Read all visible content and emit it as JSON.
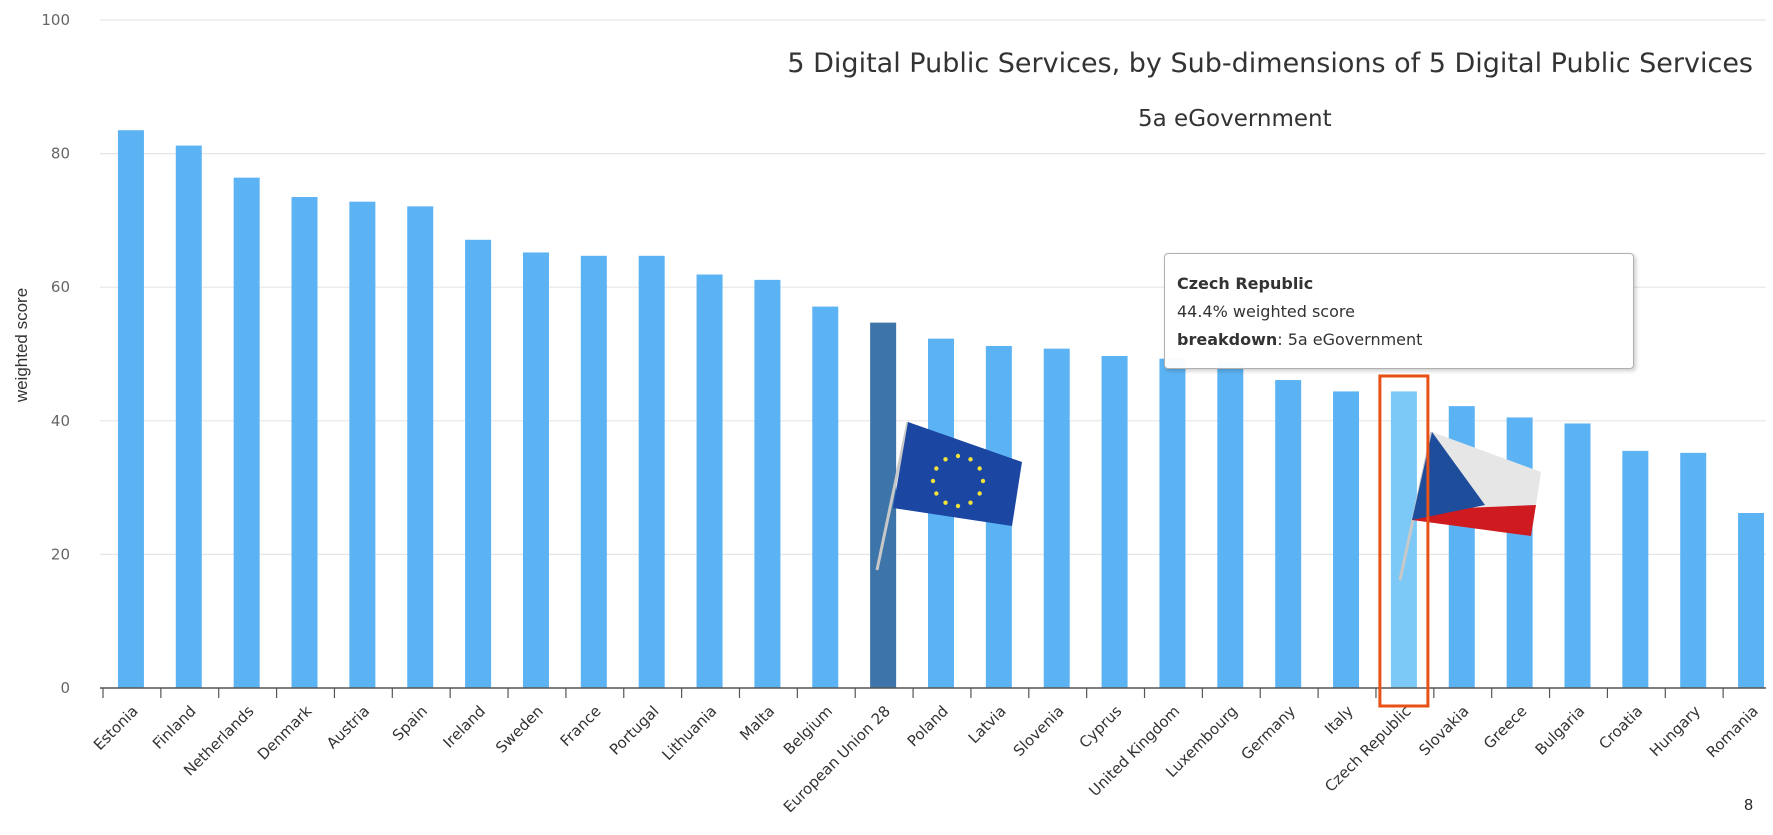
{
  "chart_data": {
    "type": "bar",
    "title": "5 Digital Public Services, by Sub-dimensions of 5 Digital Public Services",
    "subtitle": "5a eGovernment",
    "xlabel": "",
    "ylabel": "weighted score",
    "ylim": [
      0,
      100
    ],
    "yticks": [
      "0",
      "20",
      "40",
      "60",
      "80",
      "100"
    ],
    "grid": true,
    "legend": "none",
    "categories": [
      "Estonia",
      "Finland",
      "Netherlands",
      "Denmark",
      "Austria",
      "Spain",
      "Ireland",
      "Sweden",
      "France",
      "Portugal",
      "Lithuania",
      "Malta",
      "Belgium",
      "European Union 28",
      "Poland",
      "Latvia",
      "Slovenia",
      "Cyprus",
      "United Kingdom",
      "Luxembourg",
      "Germany",
      "Italy",
      "Czech Republic",
      "Slovakia",
      "Greece",
      "Bulgaria",
      "Croatia",
      "Hungary",
      "Romania"
    ],
    "values": [
      83.5,
      81.2,
      76.4,
      73.5,
      72.8,
      72.1,
      67.1,
      65.2,
      64.7,
      64.7,
      61.9,
      61.1,
      57.1,
      54.7,
      52.3,
      51.2,
      50.8,
      49.7,
      49.3,
      48.7,
      46.1,
      44.4,
      44.4,
      42.2,
      40.5,
      39.6,
      35.5,
      35.2,
      26.2
    ],
    "colors": {
      "default": "#5cb3f4",
      "eu_average": "#3d74a9",
      "selected": "#7cc9f8",
      "highlight_box": "#e85016"
    },
    "highlight_category": "Czech Republic",
    "average_category": "European Union 28",
    "tooltip": {
      "country": "Czech Republic",
      "value_text": "44.4% weighted score",
      "breakdown_label": "breakdown",
      "breakdown_value": ": 5a eGovernment"
    }
  },
  "page_number": "8",
  "flags": [
    "eu-flag-icon",
    "czech-flag-icon"
  ]
}
